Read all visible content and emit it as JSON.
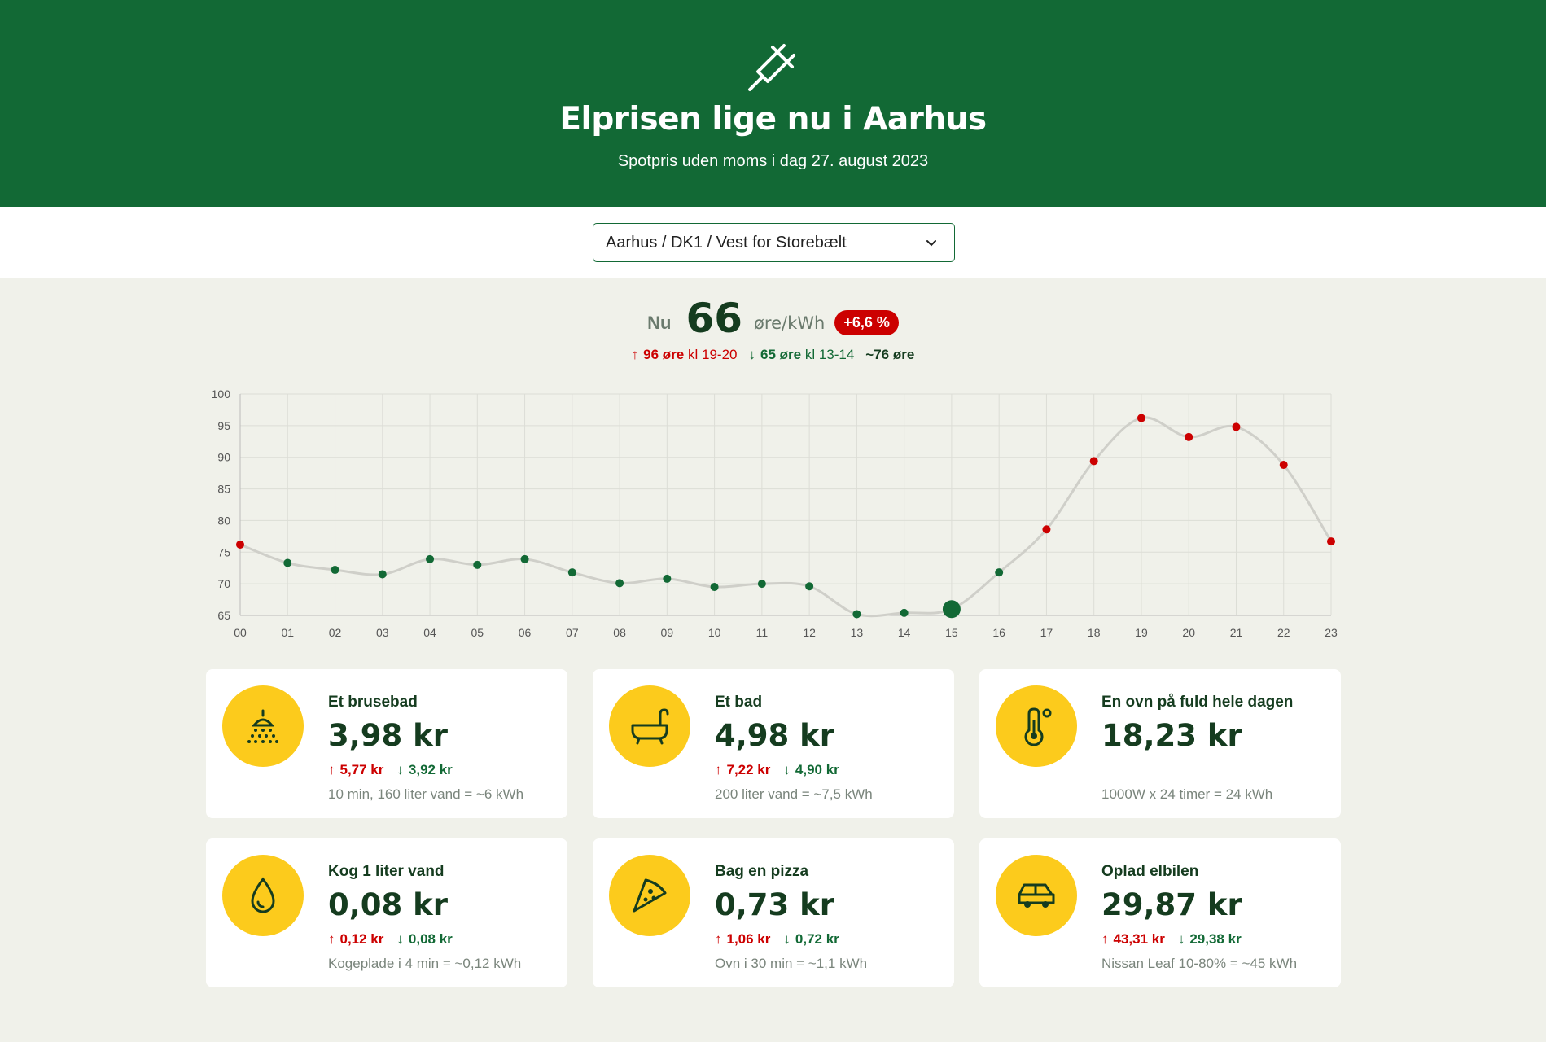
{
  "header": {
    "title": "Elprisen lige nu i Aarhus",
    "subtitle": "Spotpris uden moms i dag 27. august 2023",
    "logo_icon": "plug-icon"
  },
  "region_select": {
    "value": "Aarhus / DK1 / Vest for Storebælt"
  },
  "current": {
    "label": "Nu",
    "value": "66",
    "unit": "øre/kWh",
    "change": "+6,6 %",
    "max_value": "96 øre",
    "max_time": "kl 19-20",
    "min_value": "65 øre",
    "min_time": "kl 13-14",
    "avg_value": "~76 øre"
  },
  "colors": {
    "brand": "#126935",
    "accent": "#fccb1c",
    "up": "#cc0000",
    "down": "#126935"
  },
  "chart_data": {
    "type": "line",
    "x": [
      "00",
      "01",
      "02",
      "03",
      "04",
      "05",
      "06",
      "07",
      "08",
      "09",
      "10",
      "11",
      "12",
      "13",
      "14",
      "15",
      "16",
      "17",
      "18",
      "19",
      "20",
      "21",
      "22",
      "23"
    ],
    "values": [
      76.2,
      73.3,
      72.2,
      71.5,
      73.9,
      73.0,
      73.9,
      71.8,
      70.1,
      70.8,
      69.5,
      70.0,
      69.6,
      65.2,
      65.4,
      66.0,
      71.8,
      78.6,
      89.4,
      96.2,
      93.2,
      94.8,
      88.8,
      76.7
    ],
    "current_index": 15,
    "ylim": [
      65,
      100
    ],
    "yticks": [
      65,
      70,
      75,
      80,
      85,
      90,
      95,
      100
    ],
    "high_threshold": 76,
    "grid": true
  },
  "cards": [
    {
      "icon": "shower-icon",
      "title": "Et brusebad",
      "price": "3,98 kr",
      "max": "5,77 kr",
      "min": "3,92 kr",
      "desc": "10 min, 160 liter vand = ~6 kWh"
    },
    {
      "icon": "bathtub-icon",
      "title": "Et bad",
      "price": "4,98 kr",
      "max": "7,22 kr",
      "min": "4,90 kr",
      "desc": "200 liter vand = ~7,5 kWh"
    },
    {
      "icon": "thermometer-icon",
      "title": "En ovn på fuld hele dagen",
      "price": "18,23 kr",
      "max": "",
      "min": "",
      "desc": "1000W x 24 timer = 24 kWh"
    },
    {
      "icon": "water-drop-icon",
      "title": "Kog 1 liter vand",
      "price": "0,08 kr",
      "max": "0,12 kr",
      "min": "0,08 kr",
      "desc": "Kogeplade i 4 min = ~0,12 kWh"
    },
    {
      "icon": "pizza-icon",
      "title": "Bag en pizza",
      "price": "0,73 kr",
      "max": "1,06 kr",
      "min": "0,72 kr",
      "desc": "Ovn i 30 min = ~1,1 kWh"
    },
    {
      "icon": "car-icon",
      "title": "Oplad elbilen",
      "price": "29,87 kr",
      "max": "43,31 kr",
      "min": "29,38 kr",
      "desc": "Nissan Leaf 10-80% = ~45 kWh"
    }
  ]
}
